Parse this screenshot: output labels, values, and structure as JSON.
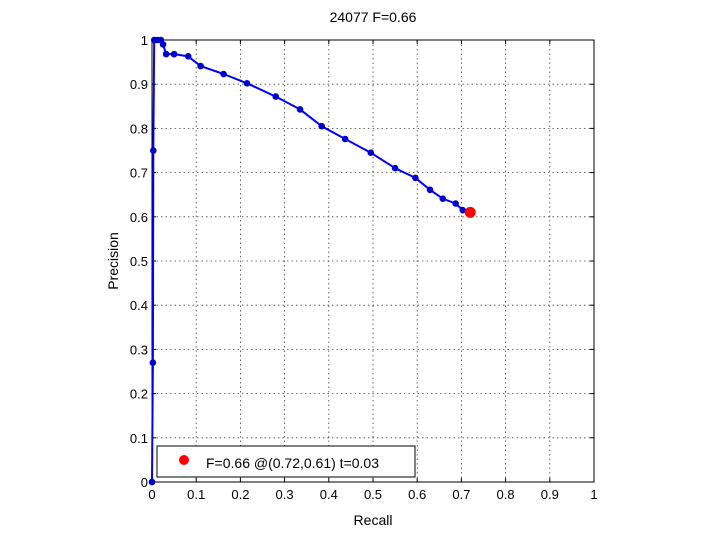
{
  "chart_data": {
    "type": "line",
    "title": "24077 F=0.66",
    "xlabel": "Recall",
    "ylabel": "Precision",
    "xlim": [
      0,
      1
    ],
    "ylim": [
      0,
      1
    ],
    "grid": true,
    "legend_position": "bottom-left",
    "x_ticks": [
      "0",
      "0.1",
      "0.2",
      "0.3",
      "0.4",
      "0.5",
      "0.6",
      "0.7",
      "0.8",
      "0.9",
      "1"
    ],
    "y_ticks": [
      "0",
      "0.1",
      "0.2",
      "0.3",
      "0.4",
      "0.5",
      "0.6",
      "0.7",
      "0.8",
      "0.9",
      "1"
    ],
    "series": [
      {
        "color": "#0000ff",
        "marker_color": "#0000cc",
        "points": [
          [
            0.0,
            0.0
          ],
          [
            0.002,
            0.27
          ],
          [
            0.003,
            0.75
          ],
          [
            0.005,
            1.0
          ],
          [
            0.012,
            1.0
          ],
          [
            0.02,
            1.0
          ],
          [
            0.025,
            0.99
          ],
          [
            0.032,
            0.968
          ],
          [
            0.05,
            0.968
          ],
          [
            0.082,
            0.963
          ],
          [
            0.11,
            0.941
          ],
          [
            0.162,
            0.923
          ],
          [
            0.215,
            0.902
          ],
          [
            0.28,
            0.872
          ],
          [
            0.335,
            0.843
          ],
          [
            0.384,
            0.805
          ],
          [
            0.437,
            0.776
          ],
          [
            0.495,
            0.745
          ],
          [
            0.55,
            0.71
          ],
          [
            0.596,
            0.688
          ],
          [
            0.629,
            0.661
          ],
          [
            0.658,
            0.641
          ],
          [
            0.687,
            0.63
          ],
          [
            0.703,
            0.615
          ],
          [
            0.722,
            0.613
          ]
        ]
      }
    ],
    "best_point": {
      "recall": 0.72,
      "precision": 0.61,
      "color": "#ff0000"
    },
    "legend": {
      "label": "F=0.66 @(0.72,0.61) t=0.03"
    }
  }
}
